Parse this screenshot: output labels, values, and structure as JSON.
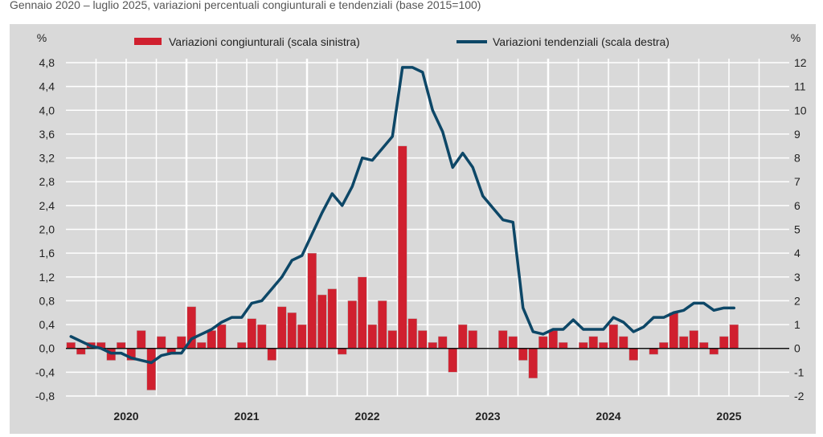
{
  "chart_data": {
    "type": "bar+line",
    "title": "Gennaio 2020 – luglio 2025, variazioni percentuali congiunturali e tendenziali (base 2015=100)",
    "left_axis": {
      "unit": "%",
      "range": [
        -0.8,
        4.8
      ],
      "ticks": [
        "-0,8",
        "-0,4",
        "0,0",
        "0,4",
        "0,8",
        "1,2",
        "1,6",
        "2,0",
        "2,4",
        "2,8",
        "3,2",
        "3,6",
        "4,0",
        "4,4",
        "4,8"
      ]
    },
    "right_axis": {
      "unit": "%",
      "range": [
        -2,
        12
      ],
      "ticks": [
        "-2",
        "-1",
        "0",
        "1",
        "2",
        "3",
        "4",
        "5",
        "6",
        "7",
        "8",
        "9",
        "10",
        "11",
        "12"
      ]
    },
    "years": [
      "2020",
      "2021",
      "2022",
      "2023",
      "2024",
      "2025"
    ],
    "grid": true,
    "legend_position": "top",
    "colors": {
      "bars": "#d0202f",
      "line": "#0d4767",
      "background": "#d9d9d9"
    },
    "series": [
      {
        "name": "Variazioni congiunturali (scala sinistra)",
        "type": "bar",
        "axis": "left",
        "values": [
          0.1,
          -0.1,
          0.1,
          0.1,
          -0.2,
          0.1,
          -0.2,
          0.3,
          -0.7,
          0.2,
          -0.1,
          0.2,
          0.7,
          0.1,
          0.3,
          0.4,
          0.0,
          0.1,
          0.5,
          0.4,
          -0.2,
          0.7,
          0.6,
          0.4,
          1.6,
          0.9,
          1.0,
          -0.1,
          0.8,
          1.2,
          0.4,
          0.8,
          0.3,
          3.4,
          0.5,
          0.3,
          0.1,
          0.2,
          -0.4,
          0.4,
          0.3,
          0.0,
          0.0,
          0.3,
          0.2,
          -0.2,
          -0.5,
          0.2,
          0.3,
          0.1,
          0.0,
          0.1,
          0.2,
          0.1,
          0.4,
          0.2,
          -0.2,
          0.0,
          -0.1,
          0.1,
          0.6,
          0.2,
          0.3,
          0.1,
          -0.1,
          0.2,
          0.4
        ]
      },
      {
        "name": "Variazioni tendenziali (scala destra)",
        "type": "line",
        "axis": "right",
        "values": [
          0.5,
          0.3,
          0.1,
          0.0,
          -0.2,
          -0.2,
          -0.4,
          -0.5,
          -0.6,
          -0.3,
          -0.2,
          -0.2,
          0.4,
          0.6,
          0.8,
          1.1,
          1.3,
          1.3,
          1.9,
          2.0,
          2.5,
          3.0,
          3.7,
          3.9,
          4.8,
          5.7,
          6.5,
          6.0,
          6.8,
          8.0,
          7.9,
          8.4,
          8.9,
          11.8,
          11.8,
          11.6,
          10.0,
          9.1,
          7.6,
          8.2,
          7.6,
          6.4,
          5.9,
          5.4,
          5.3,
          1.7,
          0.7,
          0.6,
          0.8,
          0.8,
          1.2,
          0.8,
          0.8,
          0.8,
          1.3,
          1.1,
          0.7,
          0.9,
          1.3,
          1.3,
          1.5,
          1.6,
          1.9,
          1.9,
          1.6,
          1.7,
          1.7
        ]
      }
    ]
  }
}
